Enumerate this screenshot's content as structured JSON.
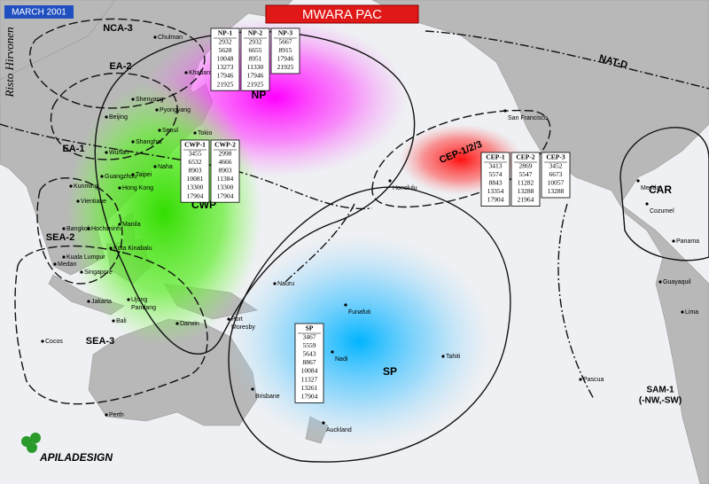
{
  "header": {
    "date": "MARCH 2001",
    "title": "MWARA PAC",
    "author": "Risto Hirvonen",
    "logo": "APILADESIGN"
  },
  "regions": [
    "NP",
    "CWP",
    "SP",
    "CEP-1/2/3",
    "NCA-3",
    "EA-2",
    "EA-1",
    "SEA-2",
    "SEA-3",
    "NAT-D",
    "CAR",
    "SAM-1",
    "(-NW,-SW)"
  ],
  "cities": [
    "Chulman",
    "Khabarovsk",
    "Shenyang",
    "Beijing",
    "Pyongyang",
    "Seoul",
    "Shanghai",
    "Tokio",
    "Wuhan",
    "Naha",
    "Taipei",
    "Guangzhou",
    "Hong Kong",
    "Kunming",
    "Vientiane",
    "Manila",
    "Bangkok",
    "Hochiminh",
    "Kota Kinabalu",
    "Kuala Lumpur",
    "Medan",
    "Singapore",
    "Jakarta",
    "Ujung",
    "Pandang",
    "Bali",
    "Darwin",
    "Port",
    "Moresby",
    "Nauru",
    "Funafuti",
    "Nadi",
    "Tahiti",
    "Cocos",
    "Perth",
    "Brisbane",
    "Auckland",
    "Honolulu",
    "San Francisco",
    "Merida",
    "Cozumel",
    "Panama",
    "Guayaquil",
    "Lima",
    "Pascua"
  ],
  "tables": [
    {
      "name": "NP-1",
      "freqs": [
        2932,
        5628,
        10048,
        13273,
        17946,
        21925
      ]
    },
    {
      "name": "NP-2",
      "freqs": [
        2932,
        6655,
        8951,
        11330,
        17946,
        21925
      ]
    },
    {
      "name": "NP-3",
      "freqs": [
        5667,
        8915,
        17946,
        21925
      ]
    },
    {
      "name": "CWP-1",
      "freqs": [
        3455,
        6532,
        8903,
        10081,
        13300,
        17904
      ]
    },
    {
      "name": "CWP-2",
      "freqs": [
        2998,
        4666,
        8903,
        11384,
        13300,
        17904
      ]
    },
    {
      "name": "CEP-1",
      "freqs": [
        3413,
        5574,
        8843,
        13354,
        17904
      ]
    },
    {
      "name": "CEP-2",
      "freqs": [
        2869,
        5547,
        11282,
        13288,
        21964
      ]
    },
    {
      "name": "CEP-3",
      "freqs": [
        3452,
        6673,
        10057,
        13288
      ]
    },
    {
      "name": "SP",
      "freqs": [
        3467,
        5559,
        5643,
        8867,
        10084,
        11327,
        13261,
        17904
      ]
    }
  ]
}
